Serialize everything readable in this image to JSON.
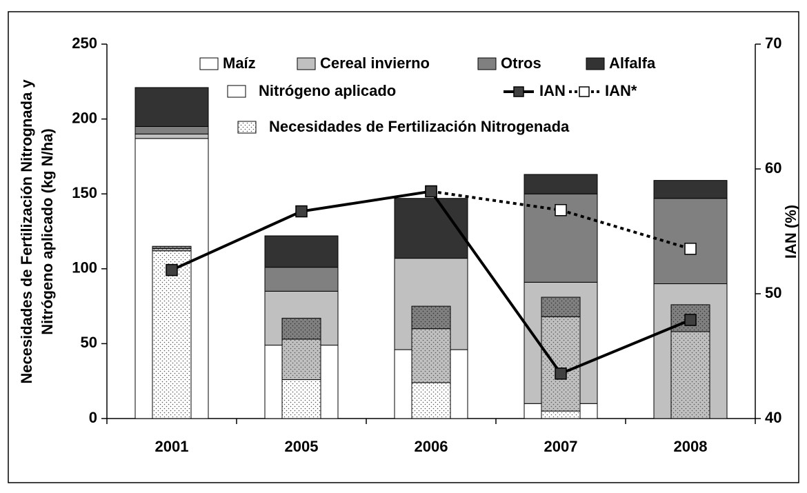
{
  "chart_data": {
    "type": "bar",
    "categories": [
      "2001",
      "2005",
      "2006",
      "2007",
      "2008"
    ],
    "ylabel": [
      "Necesidades de Fertilización Nitrognada y",
      "Nitrógeno aplicado (kg N/ha)"
    ],
    "y2label": "IAN (%)",
    "ylim": [
      0,
      250
    ],
    "yticks": [
      0,
      50,
      100,
      150,
      200,
      250
    ],
    "y2lim": [
      40,
      70
    ],
    "y2ticks": [
      40,
      50,
      60,
      70
    ],
    "stacks": [
      {
        "name": "Nitrógeno aplicado",
        "series": [
          {
            "name": "Maíz",
            "color": "#ffffff",
            "values": [
              187,
              49,
              46,
              10,
              0
            ]
          },
          {
            "name": "Cereal invierno",
            "color": "#c0c0c0",
            "values": [
              3,
              36,
              61,
              81,
              90
            ]
          },
          {
            "name": "Otros",
            "color": "#808080",
            "values": [
              5,
              16,
              0,
              59,
              57
            ]
          },
          {
            "name": "Alfalfa",
            "color": "#333333",
            "values": [
              26,
              21,
              40,
              13,
              12
            ]
          }
        ]
      },
      {
        "name": "Necesidades de Fertilización Nitrogenada",
        "pattern": "dots",
        "series": [
          {
            "color": "#ffffff",
            "values": [
              112,
              26,
              24,
              5,
              0
            ]
          },
          {
            "color": "#c0c0c0",
            "values": [
              1.5,
              27,
              36,
              63,
              58
            ]
          },
          {
            "color": "#808080",
            "values": [
              1.5,
              14,
              15,
              13,
              18
            ]
          }
        ]
      }
    ],
    "lines": [
      {
        "name": "IAN*",
        "axis": "y2",
        "style": "dotted",
        "marker_color": "#ffffff",
        "values": [
          null,
          null,
          58.2,
          56.7,
          53.6
        ]
      },
      {
        "name": "IAN",
        "axis": "y2",
        "style": "solid",
        "marker_color": "#404040",
        "values": [
          51.9,
          56.6,
          58.2,
          43.6,
          47.9
        ]
      }
    ]
  }
}
